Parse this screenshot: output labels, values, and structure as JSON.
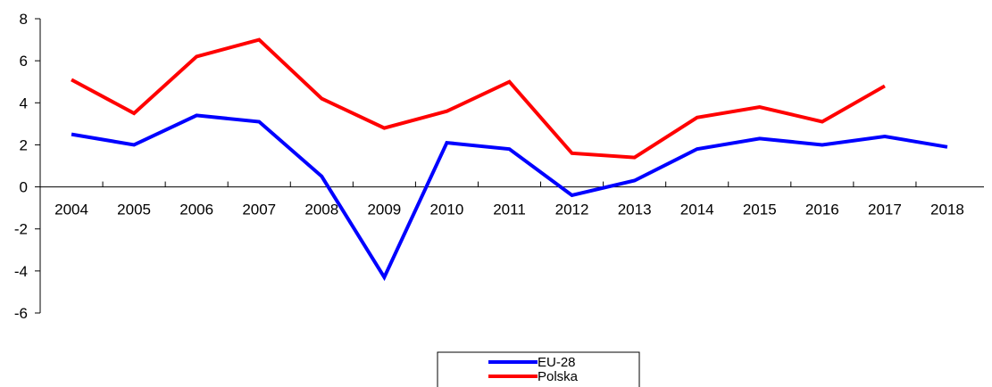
{
  "chart_data": {
    "type": "line",
    "categories": [
      "2004",
      "2005",
      "2006",
      "2007",
      "2008",
      "2009",
      "2010",
      "2011",
      "2012",
      "2013",
      "2014",
      "2015",
      "2016",
      "2017",
      "2018"
    ],
    "series": [
      {
        "name": "EU-28",
        "color": "#0000ff",
        "values": [
          2.5,
          2.0,
          3.4,
          3.1,
          0.5,
          -4.3,
          2.1,
          1.8,
          -0.4,
          0.3,
          1.8,
          2.3,
          2.0,
          2.4,
          1.9
        ]
      },
      {
        "name": "Polska",
        "color": "#ff0000",
        "values": [
          5.1,
          3.5,
          6.2,
          7.0,
          4.2,
          2.8,
          3.6,
          5.0,
          1.6,
          1.4,
          3.3,
          3.8,
          3.1,
          4.8,
          null
        ]
      }
    ],
    "yticks": [
      "8",
      "6",
      "4",
      "2",
      "0",
      "-2",
      "-4",
      "-6"
    ],
    "ylim": [
      -6,
      8
    ],
    "grid": false,
    "legend_position": "bottom-center"
  }
}
